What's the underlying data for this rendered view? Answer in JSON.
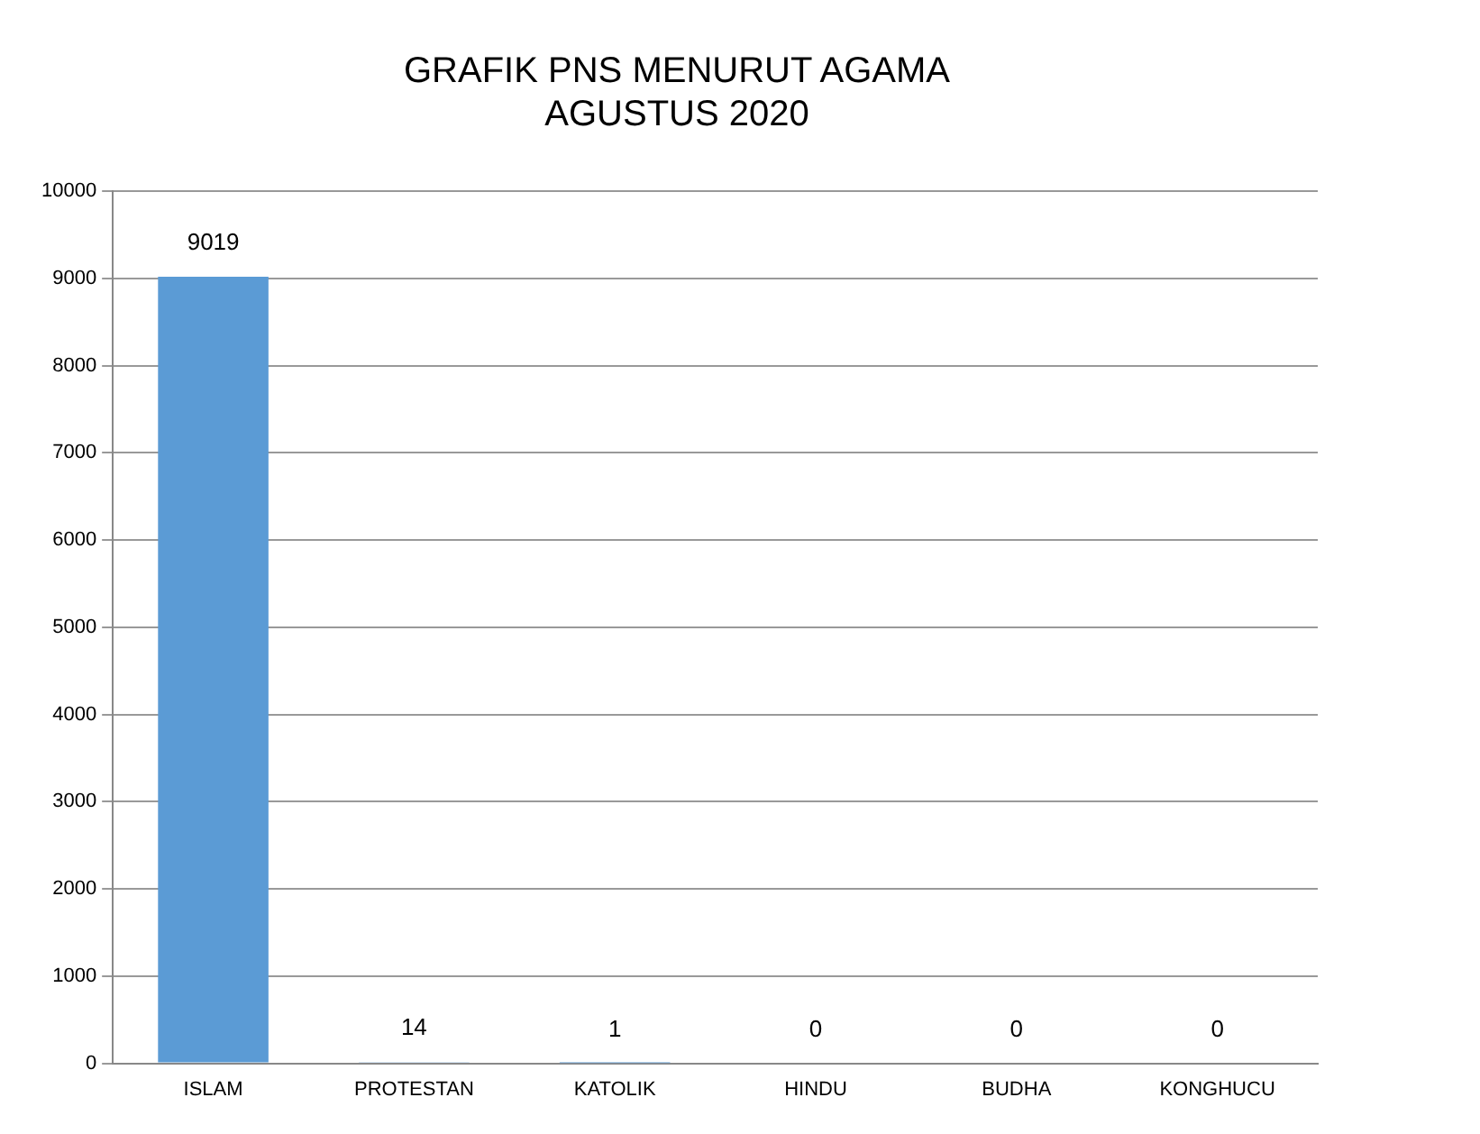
{
  "chart_data": {
    "type": "bar",
    "title": "GRAFIK PNS MENURUT AGAMA\nAGUSTUS 2020",
    "categories": [
      "ISLAM",
      "PROTESTAN",
      "KATOLIK",
      "HINDU",
      "BUDHA",
      "KONGHUCU"
    ],
    "values": [
      9019,
      14,
      1,
      0,
      0,
      0
    ],
    "color": "#5b9bd5",
    "ylim": [
      0,
      10000
    ],
    "yticks": [
      0,
      1000,
      2000,
      3000,
      4000,
      5000,
      6000,
      7000,
      8000,
      9000,
      10000
    ],
    "grid": "y",
    "data_labels": true
  }
}
